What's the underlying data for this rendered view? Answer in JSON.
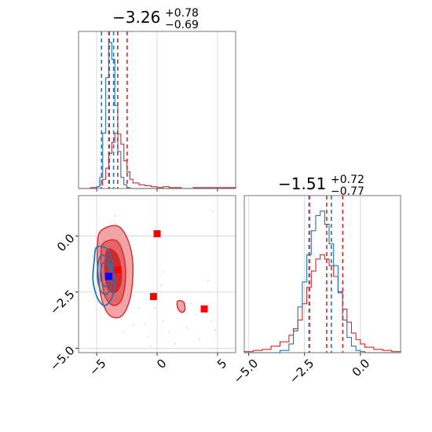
{
  "colors": {
    "red": "#d62728",
    "blue": "#1f77b4",
    "red_fill_light": "#f2a3a5",
    "red_fill_mid": "#e66567",
    "red_fill_dark": "#d62728",
    "grid": "#d0d0d0",
    "marker_red": "#ff0000",
    "marker_blue": "#0000ff"
  },
  "chart_data": {
    "type": "corner",
    "parameters": [
      {
        "title_main": "−3.26",
        "title_plus": "+0.78",
        "title_minus": "−0.69",
        "xlim": [
          -6.5,
          6.5
        ],
        "xticks": [
          -5,
          0,
          5
        ],
        "red_quantiles": [
          -3.95,
          -3.26,
          -2.48
        ],
        "blue_quantiles": [
          -4.6,
          -4.0,
          -3.6
        ],
        "hist_bins": [
          -6.5,
          -6.0,
          -5.5,
          -5.0,
          -4.75,
          -4.5,
          -4.25,
          -4.0,
          -3.75,
          -3.5,
          -3.25,
          -3.0,
          -2.75,
          -2.5,
          -2.25,
          -2.0,
          -1.5,
          -1.0,
          -0.5,
          0.0,
          0.5,
          1.0,
          2.0,
          3.0,
          4.0,
          5.0,
          6.0,
          6.5
        ],
        "red_counts": [
          0,
          0,
          1,
          2,
          4,
          10,
          22,
          38,
          50,
          60,
          59,
          48,
          30,
          18,
          10,
          6,
          4,
          3,
          2,
          1,
          2,
          1,
          0,
          1,
          1,
          1,
          1
        ],
        "blue_counts": [
          0,
          0,
          0,
          2,
          12,
          60,
          120,
          158,
          140,
          90,
          40,
          12,
          4,
          1,
          0,
          0,
          0,
          0,
          0,
          0,
          0,
          0,
          0,
          0,
          0,
          0,
          0
        ],
        "hist_max": 165
      },
      {
        "title_main": "−1.51",
        "title_plus": "+0.72",
        "title_minus": "−0.77",
        "xlim": [
          -5.2,
          1.8
        ],
        "xticks": [
          -5.0,
          -2.5,
          0.0
        ],
        "xtick_labels": [
          "−5.0",
          "−2.5",
          "0.0"
        ],
        "red_quantiles": [
          -2.28,
          -1.51,
          -0.79
        ],
        "blue_quantiles": [
          -2.3,
          -1.3
        ],
        "hist_bins": [
          -5.2,
          -4.8,
          -4.4,
          -4.0,
          -3.6,
          -3.2,
          -3.0,
          -2.8,
          -2.6,
          -2.4,
          -2.2,
          -2.0,
          -1.8,
          -1.6,
          -1.4,
          -1.2,
          -1.0,
          -0.8,
          -0.6,
          -0.4,
          -0.2,
          0.0,
          0.2,
          0.6,
          1.0,
          1.4,
          1.8
        ],
        "red_counts": [
          1,
          2,
          3,
          6,
          10,
          16,
          22,
          30,
          45,
          60,
          75,
          86,
          90,
          86,
          80,
          70,
          56,
          40,
          28,
          18,
          12,
          8,
          5,
          3,
          2,
          1
        ],
        "blue_counts": [
          0,
          0,
          0,
          0,
          2,
          8,
          20,
          42,
          65,
          90,
          112,
          126,
          130,
          118,
          100,
          80,
          55,
          30,
          14,
          6,
          2,
          1,
          0,
          0,
          0,
          0
        ],
        "hist_max": 140
      }
    ],
    "joint": {
      "xlim": [
        -6.5,
        6.5
      ],
      "ylim": [
        -5.2,
        1.8
      ],
      "xticks": [
        -5,
        0,
        5
      ],
      "xtick_labels": [
        "−5",
        "0",
        "5"
      ],
      "yticks": [
        -5.0,
        -2.5,
        0.0
      ],
      "ytick_labels": [
        "−5.0",
        "−2.5",
        "0.0"
      ],
      "red_contours": [
        {
          "level": "outer",
          "points": [
            [
              -4.7,
              0.2
            ],
            [
              -3.3,
              0.45
            ],
            [
              -2.4,
              -0.2
            ],
            [
              -2.0,
              -1.3
            ],
            [
              -2.2,
              -2.7
            ],
            [
              -2.9,
              -3.55
            ],
            [
              -3.9,
              -3.55
            ],
            [
              -4.6,
              -2.8
            ],
            [
              -4.9,
              -1.6
            ],
            [
              -4.95,
              -0.6
            ]
          ]
        },
        {
          "level": "mid",
          "points": [
            [
              -4.5,
              -0.35
            ],
            [
              -3.4,
              -0.2
            ],
            [
              -2.8,
              -0.8
            ],
            [
              -2.6,
              -1.8
            ],
            [
              -2.9,
              -2.8
            ],
            [
              -3.6,
              -3.1
            ],
            [
              -4.3,
              -2.7
            ],
            [
              -4.6,
              -1.8
            ],
            [
              -4.65,
              -1.0
            ]
          ]
        },
        {
          "level": "inner",
          "points": [
            [
              -4.1,
              -0.6
            ],
            [
              -3.4,
              -0.75
            ],
            [
              -3.0,
              -1.4
            ],
            [
              -3.0,
              -2.1
            ],
            [
              -3.4,
              -2.5
            ],
            [
              -4.0,
              -2.4
            ],
            [
              -4.3,
              -1.8
            ],
            [
              -4.3,
              -1.1
            ]
          ]
        },
        {
          "level": "island",
          "points": [
            [
              1.7,
              -2.9
            ],
            [
              2.2,
              -2.95
            ],
            [
              2.3,
              -3.3
            ],
            [
              2.0,
              -3.4
            ],
            [
              1.7,
              -3.2
            ]
          ]
        }
      ],
      "blue_contours": [
        {
          "level": "outer",
          "points": [
            [
              -5.0,
              -0.5
            ],
            [
              -4.1,
              -0.6
            ],
            [
              -3.7,
              -1.2
            ],
            [
              -3.5,
              -2.0
            ],
            [
              -3.7,
              -2.7
            ],
            [
              -4.3,
              -3.1
            ],
            [
              -4.9,
              -2.8
            ],
            [
              -5.3,
              -2.0
            ],
            [
              -5.2,
              -1.1
            ]
          ]
        },
        {
          "level": "mid",
          "points": [
            [
              -4.7,
              -0.9
            ],
            [
              -4.1,
              -1.0
            ],
            [
              -3.8,
              -1.5
            ],
            [
              -3.8,
              -2.2
            ],
            [
              -4.2,
              -2.6
            ],
            [
              -4.7,
              -2.4
            ],
            [
              -4.95,
              -1.7
            ]
          ]
        },
        {
          "level": "inner",
          "points": [
            [
              -4.45,
              -1.2
            ],
            [
              -4.0,
              -1.3
            ],
            [
              -3.95,
              -1.9
            ],
            [
              -4.3,
              -2.25
            ],
            [
              -4.65,
              -1.95
            ],
            [
              -4.65,
              -1.5
            ]
          ]
        }
      ],
      "red_markers": [
        [
          0.0,
          0.1
        ],
        [
          -3.26,
          -1.51
        ],
        [
          -0.3,
          -2.7
        ],
        [
          3.9,
          -3.25
        ]
      ],
      "blue_markers": [
        [
          -4.0,
          -1.8
        ]
      ],
      "scatter_points": [
        [
          2.8,
          -3.0
        ],
        [
          3.2,
          -3.5
        ],
        [
          4.5,
          -3.8
        ],
        [
          4.8,
          -4.2
        ],
        [
          3.5,
          -4.6
        ],
        [
          5.0,
          -5.0
        ],
        [
          -0.2,
          -3.2
        ],
        [
          0.5,
          -3.8
        ],
        [
          1.0,
          -4.3
        ],
        [
          -1.0,
          -3.9
        ],
        [
          -0.8,
          -4.5
        ],
        [
          0.3,
          -2.2
        ],
        [
          0.5,
          -1.6
        ],
        [
          -1.5,
          -3.2
        ],
        [
          -2.0,
          -4.0
        ],
        [
          4.2,
          -2.0
        ],
        [
          -3.5,
          0.9
        ],
        [
          -2.8,
          -4.3
        ],
        [
          1.5,
          -4.8
        ],
        [
          -0.5,
          -4.9
        ],
        [
          4.6,
          1.1
        ],
        [
          2.5,
          -4.1
        ]
      ]
    }
  }
}
